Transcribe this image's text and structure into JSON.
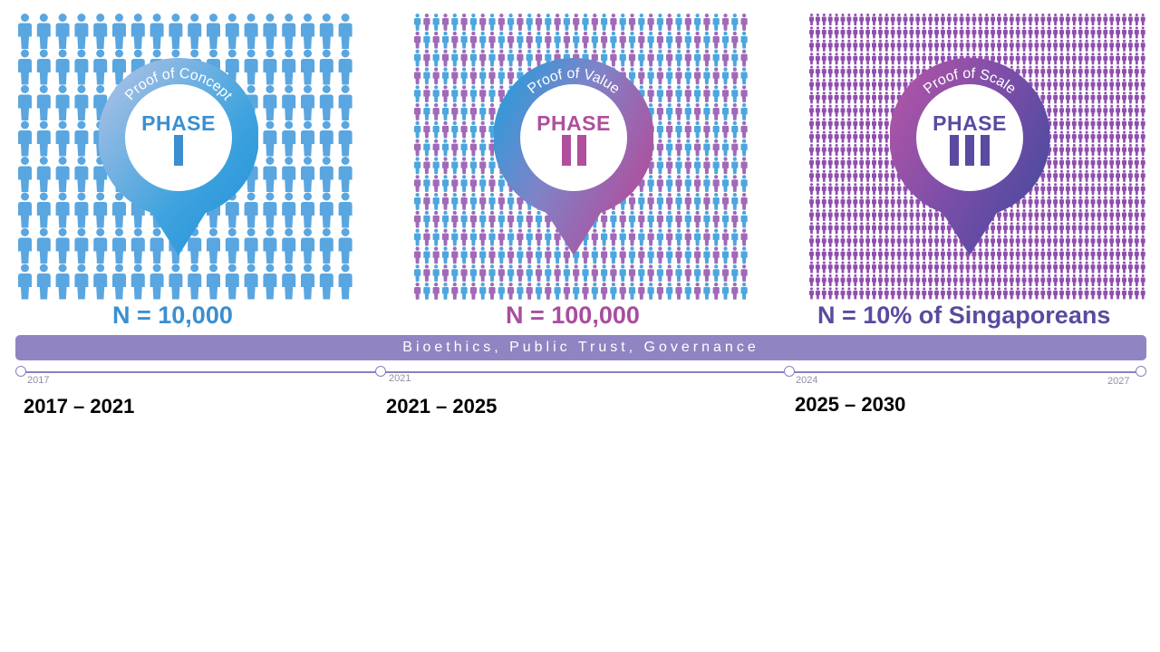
{
  "phases": [
    {
      "arc_text": "Proof of Concept",
      "phase_word": "PHASE",
      "numeral": "I",
      "n_label": "N = 10,000",
      "label_color": "#3b8fd0",
      "phase_color": "#3b8fd0",
      "figure_color": "#5aa6e0"
    },
    {
      "arc_text": "Proof of Value",
      "phase_word": "PHASE",
      "numeral": "II",
      "n_label": "N = 100,000",
      "label_color": "#a84e9e",
      "phase_color": "#b04f9c",
      "figure_color_a": "#4da6de",
      "figure_color_b": "#a06ab8"
    },
    {
      "arc_text": "Proof of Scale",
      "phase_word": "PHASE",
      "numeral": "III",
      "n_label": "N = 10% of Singaporeans",
      "label_color": "#5b4a9e",
      "phase_color": "#5b4aa0",
      "figure_color": "#8e4fae"
    }
  ],
  "banner": {
    "text": "Bioethics, Public Trust, Governance"
  },
  "timeline": {
    "ticks": [
      "2017",
      "2021",
      "2024",
      "2027"
    ],
    "ranges": [
      "2017 – 2021",
      "2021 – 2025",
      "2025 – 2030"
    ]
  }
}
